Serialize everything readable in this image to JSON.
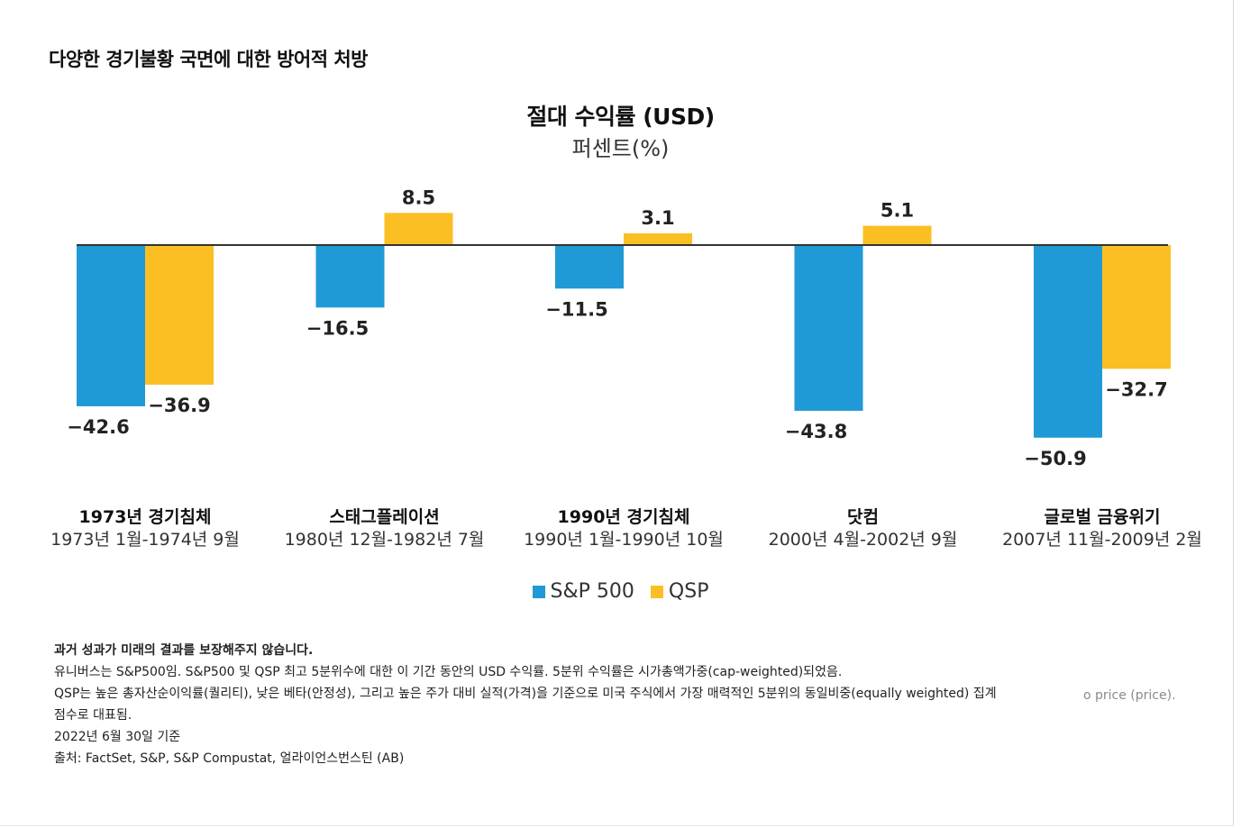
{
  "page_heading": "다양한 경기불황 국면에 대한 방어적 처방",
  "chart_data": {
    "type": "bar",
    "title": "절대 수익률 (USD)",
    "subtitle": "퍼센트(%)",
    "categories": [
      "1973년 경기침체",
      "스태그플레이션",
      "1990년 경기침체",
      "닷컴",
      "글로벌 금융위기"
    ],
    "category_periods": [
      "1973년 1월-1974년 9월",
      "1980년 12월-1982년 7월",
      "1990년 1월-1990년 10월",
      "2000년 4월-2002년 9월",
      "2007년 11월-2009년 2월"
    ],
    "series": [
      {
        "name": "S&P 500",
        "values": [
          -42.6,
          -16.5,
          -11.5,
          -43.8,
          -50.9
        ],
        "color": "#1f9ad6"
      },
      {
        "name": "QSP",
        "values": [
          -36.9,
          8.5,
          3.1,
          5.1,
          -32.7
        ],
        "color": "#fbbf24"
      }
    ],
    "value_labels": {
      "S&P 500": [
        "−42.6",
        "−16.5",
        "−11.5",
        "−43.8",
        "−50.9"
      ],
      "QSP": [
        "−36.9",
        "8.5",
        "3.1",
        "5.1",
        "−32.7"
      ]
    },
    "ylim": [
      -55,
      10
    ],
    "grid": false,
    "legend_position": "bottom-center",
    "baseline_color": "#333333"
  },
  "legend": [
    {
      "label": "S&P 500",
      "color": "#1f9ad6"
    },
    {
      "label": "QSP",
      "color": "#fbbf24"
    }
  ],
  "notes": [
    "과거 성과가 미래의 결과를 보장해주지 않습니다.",
    "유니버스는 S&P500임. S&P500 및 QSP 최고 5분위수에 대한 이 기간 동안의 USD 수익률. 5분위 수익률은 시가총액가중(cap-weighted)되었음.",
    "QSP는 높은 총자산순이익률(퀄리티), 낮은 베타(안정성), 그리고 높은 주가 대비 실적(가격)을 기준으로 미국 주식에서 가장 매력적인 5분위의 동일비중(equally weighted) 집계",
    "점수로 대표됨.",
    "2022년 6월 30일 기준",
    "출처: FactSet, S&P, S&P Compustat, 얼라이언스번스틴 (AB)"
  ],
  "stray_text": "o price (price)."
}
